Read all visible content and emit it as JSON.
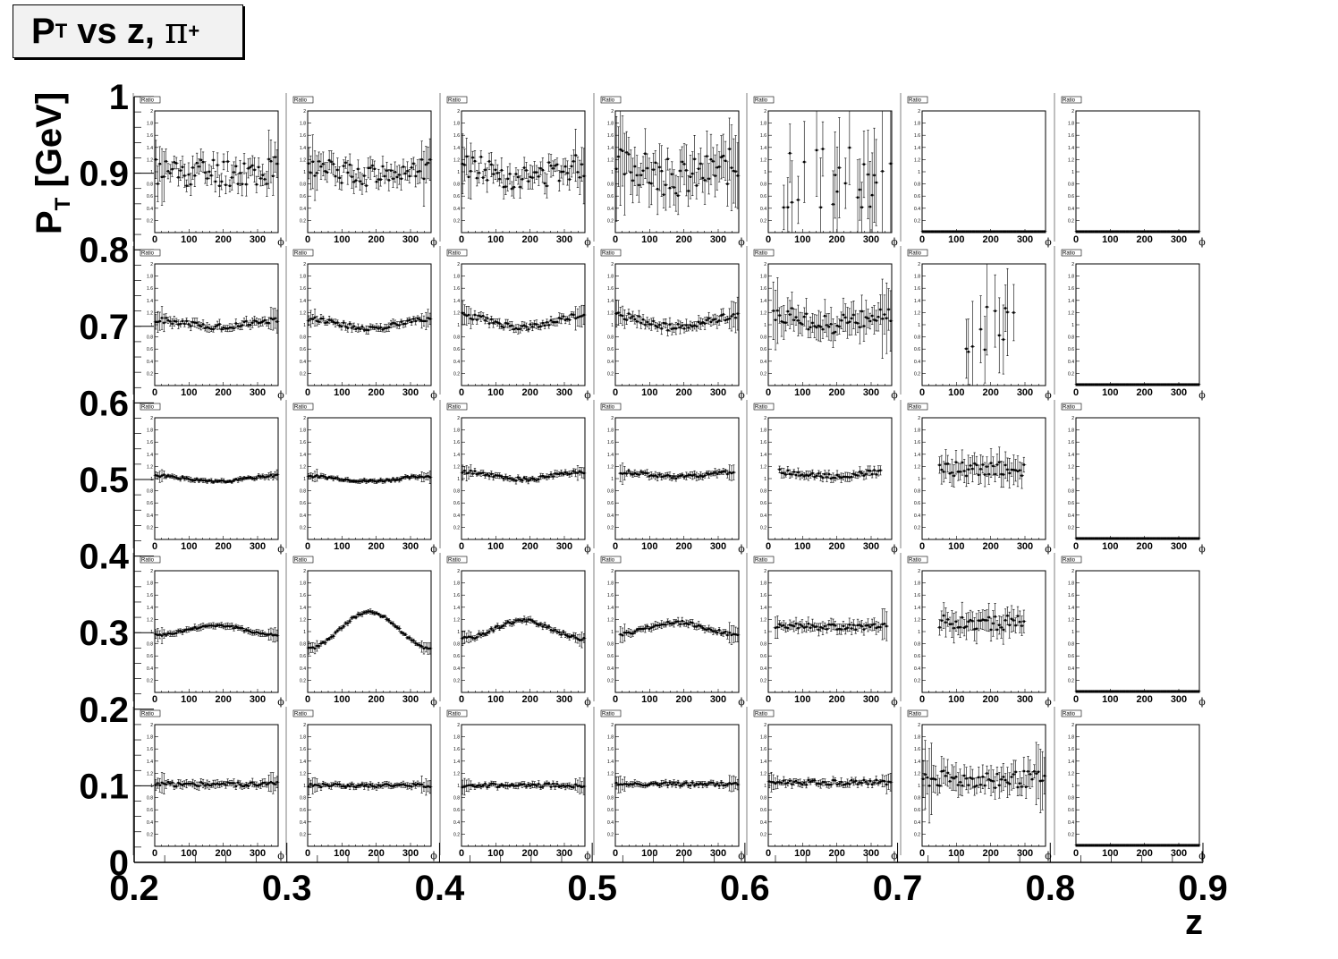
{
  "title": {
    "prefix": "P",
    "sub": "T",
    "middle": " vs z, ",
    "greek": "π",
    "sup": "+"
  },
  "chart_data": {
    "type": "scatter",
    "layout": "grid of 5 rows x 7 columns of ratio-vs-phi histograms",
    "outer_x": {
      "label": "z",
      "range": [
        0.2,
        0.9
      ],
      "ticks": [
        "0.2",
        "0.3",
        "0.4",
        "0.5",
        "0.6",
        "0.7",
        "0.8",
        "0.9"
      ]
    },
    "outer_y": {
      "label": "P",
      "label_sub": "T",
      "label_unit": " [GeV]",
      "range": [
        0,
        1
      ],
      "ticks": [
        "0",
        "0.1",
        "0.2",
        "0.3",
        "0.4",
        "0.5",
        "0.6",
        "0.7",
        "0.8",
        "0.9",
        "1"
      ]
    },
    "panel": {
      "title": "Ratio",
      "xlabel": "ϕ",
      "xlim": [
        0,
        360
      ],
      "ylim": [
        0,
        2
      ],
      "xticks": [
        "0",
        "100",
        "200",
        "300"
      ],
      "yticks": [
        "0.2",
        "0.4",
        "0.6",
        "0.8",
        "1",
        "1.2",
        "1.4",
        "1.6",
        "1.8",
        "2"
      ]
    },
    "pt_bins": [
      "0.8-1.0",
      "0.6-0.8",
      "0.4-0.6",
      "0.2-0.4",
      "0.0-0.2"
    ],
    "z_bins": [
      "0.2-0.3",
      "0.3-0.4",
      "0.4-0.5",
      "0.5-0.6",
      "0.6-0.7",
      "0.7-0.8",
      "0.8-0.9"
    ],
    "panels": [
      [
        {
          "mode": "noisy",
          "level": 1.0,
          "amp": 0.0,
          "err": 0.15,
          "lo": 0,
          "hi": 360,
          "scatter": 0.25,
          "seed": 11
        },
        {
          "mode": "noisy",
          "level": 1.0,
          "amp": 0.05,
          "err": 0.15,
          "lo": 0,
          "hi": 360,
          "scatter": 0.18,
          "seed": 12
        },
        {
          "mode": "noisy",
          "level": 1.0,
          "amp": 0.1,
          "err": 0.15,
          "lo": 0,
          "hi": 360,
          "scatter": 0.2,
          "seed": 13
        },
        {
          "mode": "noisy",
          "level": 1.0,
          "amp": 0.1,
          "err": 0.3,
          "lo": 0,
          "hi": 360,
          "scatter": 0.3,
          "seed": 14
        },
        {
          "mode": "sparse",
          "level": 0.9,
          "amp": 0.0,
          "err": 0.6,
          "lo": 30,
          "hi": 360,
          "scatter": 0.5,
          "seed": 15
        },
        {
          "mode": "zero",
          "level": 0.02,
          "amp": 0.0,
          "err": 0.0,
          "lo": 0,
          "hi": 360,
          "scatter": 0,
          "seed": 16
        },
        {
          "mode": "zero",
          "level": 0.02,
          "amp": 0.0,
          "err": 0.0,
          "lo": 0,
          "hi": 360,
          "scatter": 0,
          "seed": 17
        }
      ],
      [
        {
          "mode": "normal",
          "level": 1.02,
          "amp": 0.05,
          "err": 0.06,
          "lo": 0,
          "hi": 360,
          "scatter": 0.05,
          "seed": 21
        },
        {
          "mode": "normal",
          "level": 1.02,
          "amp": 0.08,
          "err": 0.05,
          "lo": 0,
          "hi": 360,
          "scatter": 0.04,
          "seed": 22
        },
        {
          "mode": "normal",
          "level": 1.05,
          "amp": 0.1,
          "err": 0.06,
          "lo": 0,
          "hi": 360,
          "scatter": 0.05,
          "seed": 23
        },
        {
          "mode": "normal",
          "level": 1.05,
          "amp": 0.1,
          "err": 0.08,
          "lo": 0,
          "hi": 360,
          "scatter": 0.06,
          "seed": 24
        },
        {
          "mode": "noisy",
          "level": 1.1,
          "amp": 0.1,
          "err": 0.2,
          "lo": 10,
          "hi": 360,
          "scatter": 0.15,
          "seed": 25
        },
        {
          "mode": "sparse",
          "level": 0.9,
          "amp": 0.0,
          "err": 0.6,
          "lo": 100,
          "hi": 270,
          "scatter": 0.4,
          "seed": 26
        },
        {
          "mode": "zero",
          "level": 0.02,
          "amp": 0.0,
          "err": 0.0,
          "lo": 0,
          "hi": 360,
          "scatter": 0,
          "seed": 27
        }
      ],
      [
        {
          "mode": "normal",
          "level": 1.0,
          "amp": 0.05,
          "err": 0.03,
          "lo": 0,
          "hi": 360,
          "scatter": 0.02,
          "seed": 31
        },
        {
          "mode": "normal",
          "level": 1.0,
          "amp": 0.04,
          "err": 0.03,
          "lo": 0,
          "hi": 360,
          "scatter": 0.02,
          "seed": 32
        },
        {
          "mode": "normal",
          "level": 1.05,
          "amp": 0.06,
          "err": 0.04,
          "lo": 0,
          "hi": 360,
          "scatter": 0.03,
          "seed": 33
        },
        {
          "mode": "normal",
          "level": 1.07,
          "amp": 0.04,
          "err": 0.05,
          "lo": 10,
          "hi": 350,
          "scatter": 0.03,
          "seed": 34
        },
        {
          "mode": "normal",
          "level": 1.08,
          "amp": 0.04,
          "err": 0.06,
          "lo": 30,
          "hi": 330,
          "scatter": 0.04,
          "seed": 35
        },
        {
          "mode": "noisy",
          "level": 1.15,
          "amp": 0.0,
          "err": 0.18,
          "lo": 50,
          "hi": 300,
          "scatter": 0.12,
          "seed": 36
        },
        {
          "mode": "zero",
          "level": 0.02,
          "amp": 0.0,
          "err": 0.0,
          "lo": 0,
          "hi": 360,
          "scatter": 0,
          "seed": 37
        }
      ],
      [
        {
          "mode": "normal",
          "level": 1.02,
          "amp": -0.08,
          "err": 0.04,
          "lo": 0,
          "hi": 360,
          "scatter": 0.02,
          "seed": 41
        },
        {
          "mode": "normal",
          "level": 1.02,
          "amp": -0.3,
          "err": 0.03,
          "lo": 0,
          "hi": 360,
          "scatter": 0.02,
          "seed": 42
        },
        {
          "mode": "normal",
          "level": 1.03,
          "amp": -0.15,
          "err": 0.04,
          "lo": 0,
          "hi": 360,
          "scatter": 0.03,
          "seed": 43
        },
        {
          "mode": "normal",
          "level": 1.05,
          "amp": -0.1,
          "err": 0.05,
          "lo": 10,
          "hi": 360,
          "scatter": 0.03,
          "seed": 44
        },
        {
          "mode": "normal",
          "level": 1.08,
          "amp": 0.0,
          "err": 0.08,
          "lo": 20,
          "hi": 350,
          "scatter": 0.05,
          "seed": 45
        },
        {
          "mode": "noisy",
          "level": 1.15,
          "amp": 0.0,
          "err": 0.18,
          "lo": 50,
          "hi": 300,
          "scatter": 0.12,
          "seed": 46
        },
        {
          "mode": "zero",
          "level": 0.02,
          "amp": 0.0,
          "err": 0.0,
          "lo": 0,
          "hi": 360,
          "scatter": 0,
          "seed": 47
        }
      ],
      [
        {
          "mode": "normal",
          "level": 1.02,
          "amp": 0.0,
          "err": 0.05,
          "lo": 0,
          "hi": 360,
          "scatter": 0.04,
          "seed": 51
        },
        {
          "mode": "normal",
          "level": 1.0,
          "amp": 0.0,
          "err": 0.04,
          "lo": 0,
          "hi": 360,
          "scatter": 0.03,
          "seed": 52
        },
        {
          "mode": "normal",
          "level": 1.0,
          "amp": 0.0,
          "err": 0.04,
          "lo": 0,
          "hi": 360,
          "scatter": 0.03,
          "seed": 53
        },
        {
          "mode": "normal",
          "level": 1.02,
          "amp": 0.0,
          "err": 0.04,
          "lo": 0,
          "hi": 360,
          "scatter": 0.03,
          "seed": 54
        },
        {
          "mode": "normal",
          "level": 1.05,
          "amp": 0.0,
          "err": 0.05,
          "lo": 0,
          "hi": 360,
          "scatter": 0.04,
          "seed": 55
        },
        {
          "mode": "noisy",
          "level": 1.1,
          "amp": 0.0,
          "err": 0.18,
          "lo": 0,
          "hi": 360,
          "scatter": 0.14,
          "seed": 56
        },
        {
          "mode": "zero",
          "level": 0.02,
          "amp": 0.0,
          "err": 0.0,
          "lo": 0,
          "hi": 360,
          "scatter": 0,
          "seed": 57
        }
      ]
    ]
  }
}
